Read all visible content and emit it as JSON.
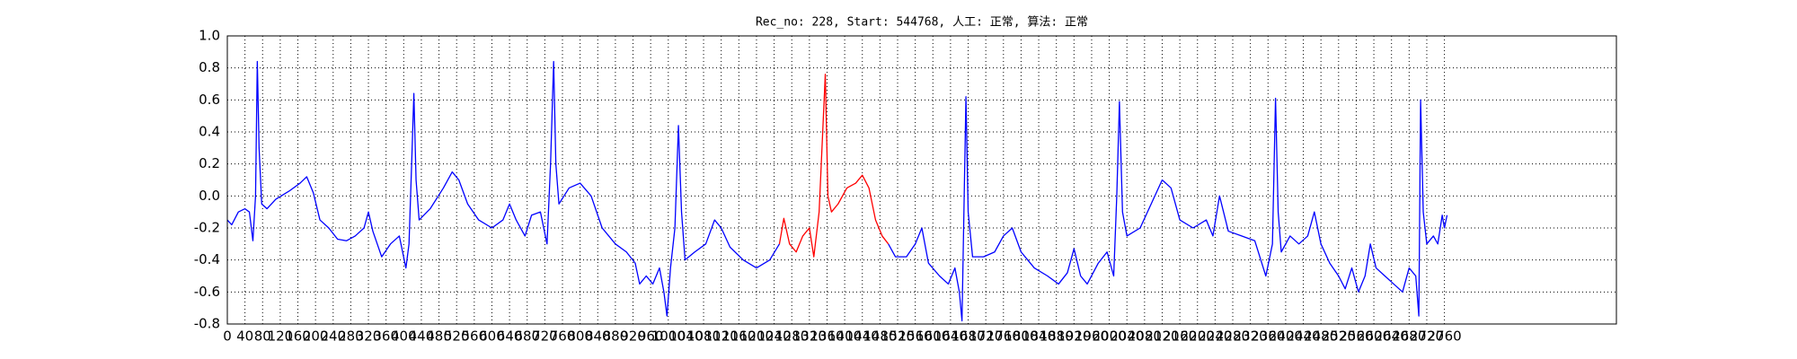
{
  "chart_data": {
    "type": "line",
    "title": "Rec_no: 228, Start: 544768, 人工: 正常, 算法: 正常",
    "x": [
      0,
      10,
      25,
      40,
      50,
      58,
      64,
      68,
      72,
      78,
      90,
      110,
      140,
      165,
      180,
      195,
      210,
      230,
      250,
      270,
      290,
      310,
      320,
      330,
      350,
      370,
      390,
      405,
      412,
      418,
      423,
      428,
      435,
      460,
      490,
      510,
      525,
      545,
      570,
      600,
      625,
      640,
      655,
      675,
      690,
      710,
      725,
      733,
      740,
      745,
      752,
      775,
      800,
      825,
      850,
      880,
      905,
      925,
      935,
      950,
      965,
      980,
      990,
      997,
      1005,
      1015,
      1023,
      1030,
      1038,
      1060,
      1085,
      1105,
      1120,
      1140,
      1170,
      1200,
      1230,
      1252,
      1262,
      1275,
      1290,
      1305,
      1320,
      1330,
      1342,
      1356,
      1362,
      1370,
      1385,
      1405,
      1425,
      1440,
      1455,
      1470,
      1485,
      1499,
      1515,
      1540,
      1560,
      1575,
      1590,
      1615,
      1635,
      1650,
      1660,
      1666,
      1671,
      1675,
      1680,
      1690,
      1715,
      1740,
      1760,
      1780,
      1800,
      1830,
      1860,
      1885,
      1905,
      1920,
      1935,
      1950,
      1975,
      1995,
      2010,
      2017,
      2023,
      2030,
      2040,
      2070,
      2095,
      2120,
      2140,
      2160,
      2190,
      2220,
      2235,
      2250,
      2270,
      2300,
      2330,
      2355,
      2370,
      2377,
      2383,
      2390,
      2410,
      2430,
      2450,
      2465,
      2480,
      2500,
      2520,
      2535,
      2550,
      2565,
      2580,
      2592,
      2605,
      2625,
      2645,
      2665,
      2680,
      2695,
      2702,
      2706,
      2712,
      2720,
      2735,
      2745,
      2755,
      2760,
      2766
    ],
    "series": [
      {
        "color": "#0000ff",
        "values": [
          -0.15,
          -0.18,
          -0.1,
          -0.08,
          -0.1,
          -0.28,
          0,
          0.84,
          0.3,
          -0.05,
          -0.08,
          -0.02,
          0.03,
          0.08,
          0.12,
          0.02,
          -0.15,
          -0.2,
          -0.27,
          -0.28,
          -0.25,
          -0.2,
          -0.1,
          -0.22,
          -0.38,
          -0.3,
          -0.25,
          -0.45,
          -0.3,
          0.2,
          0.64,
          0.1,
          -0.15,
          -0.08,
          0.05,
          0.15,
          0.1,
          -0.05,
          -0.15,
          -0.2,
          -0.15,
          -0.05,
          -0.15,
          -0.25,
          -0.12,
          -0.1,
          -0.3,
          0.2,
          0.84,
          0.2,
          -0.05,
          0.05,
          0.08,
          0,
          -0.2,
          -0.3,
          -0.35,
          -0.42,
          -0.55,
          -0.5,
          -0.55,
          -0.45,
          -0.6,
          -0.75,
          -0.45,
          -0.2,
          0.44,
          -0.1,
          -0.4,
          -0.35,
          -0.3,
          -0.15,
          -0.2,
          -0.32,
          -0.4,
          -0.45,
          -0.4,
          -0.3,
          null,
          null,
          null,
          null,
          null,
          null,
          null,
          null,
          null,
          null,
          null,
          null,
          null,
          null,
          null,
          null,
          null,
          -0.3,
          -0.38,
          -0.38,
          -0.3,
          -0.2,
          -0.42,
          -0.5,
          -0.55,
          -0.45,
          -0.6,
          -0.78,
          0,
          0.62,
          -0.1,
          -0.38,
          -0.38,
          -0.35,
          -0.25,
          -0.2,
          -0.35,
          -0.45,
          -0.5,
          -0.55,
          -0.48,
          -0.33,
          -0.5,
          -0.55,
          -0.42,
          -0.35,
          -0.5,
          0,
          0.59,
          -0.1,
          -0.25,
          -0.2,
          -0.05,
          0.1,
          0.05,
          -0.15,
          -0.2,
          -0.15,
          -0.25,
          0,
          -0.22,
          -0.25,
          -0.28,
          -0.5,
          -0.3,
          0.61,
          -0.1,
          -0.35,
          -0.25,
          -0.3,
          -0.25,
          -0.1,
          -0.3,
          -0.42,
          -0.5,
          -0.58,
          -0.45,
          -0.6,
          -0.5,
          -0.3,
          -0.45,
          -0.5,
          -0.55,
          -0.6,
          -0.45,
          -0.5,
          -0.75,
          0.6,
          -0.1,
          -0.3,
          -0.25,
          -0.3,
          -0.12,
          -0.2,
          -0.12
        ]
      },
      {
        "color": "#ff0000",
        "values": [
          null,
          null,
          null,
          null,
          null,
          null,
          null,
          null,
          null,
          null,
          null,
          null,
          null,
          null,
          null,
          null,
          null,
          null,
          null,
          null,
          null,
          null,
          null,
          null,
          null,
          null,
          null,
          null,
          null,
          null,
          null,
          null,
          null,
          null,
          null,
          null,
          null,
          null,
          null,
          null,
          null,
          null,
          null,
          null,
          null,
          null,
          null,
          null,
          null,
          null,
          null,
          null,
          null,
          null,
          null,
          null,
          null,
          null,
          null,
          null,
          null,
          null,
          null,
          null,
          null,
          null,
          null,
          null,
          null,
          null,
          null,
          null,
          null,
          null,
          null,
          null,
          null,
          -0.3,
          -0.14,
          -0.3,
          -0.35,
          -0.25,
          -0.2,
          -0.38,
          -0.1,
          0.76,
          0,
          -0.1,
          -0.05,
          0.05,
          0.08,
          0.13,
          0.05,
          -0.15,
          -0.25,
          -0.3,
          null,
          null,
          null,
          null,
          null,
          null,
          null,
          null,
          null,
          null,
          null,
          null,
          null,
          null,
          null,
          null,
          null,
          null,
          null,
          null,
          null,
          null,
          null,
          null,
          null,
          null,
          null,
          null,
          null,
          null,
          null,
          null,
          null,
          null,
          null,
          null,
          null,
          null,
          null,
          null,
          null,
          null,
          null,
          null,
          null,
          null,
          null,
          null,
          null,
          null,
          null,
          null,
          null,
          null,
          null,
          null,
          null,
          null,
          null,
          null,
          null,
          null,
          null,
          null,
          null,
          null,
          null,
          null,
          null,
          null,
          null,
          null,
          null,
          null,
          null,
          null,
          null
        ]
      }
    ],
    "xlim": [
      0,
      3150
    ],
    "xticks": [
      0,
      40,
      80,
      120,
      160,
      200,
      240,
      280,
      320,
      360,
      400,
      440,
      480,
      520,
      560,
      600,
      640,
      680,
      720,
      760,
      800,
      840,
      880,
      920,
      960,
      1000,
      1040,
      1080,
      1120,
      1160,
      1200,
      1240,
      1280,
      1320,
      1360,
      1400,
      1440,
      1480,
      1520,
      1560,
      1600,
      1640,
      1680,
      1720,
      1760,
      1800,
      1840,
      1880,
      1920,
      1960,
      2000,
      2040,
      2080,
      2120,
      2160,
      2200,
      2240,
      2280,
      2320,
      2360,
      2400,
      2440,
      2480,
      2520,
      2560,
      2600,
      2640,
      2680,
      2720,
      2760
    ],
    "ylim": [
      -0.8,
      1.0
    ],
    "yticks": [
      {
        "value": 1,
        "label": "1.0"
      },
      0.8,
      0.6,
      0.4,
      0.2,
      {
        "value": 0,
        "label": "0.0"
      },
      -0.2,
      -0.4,
      -0.6,
      -0.8
    ],
    "grid": true
  }
}
